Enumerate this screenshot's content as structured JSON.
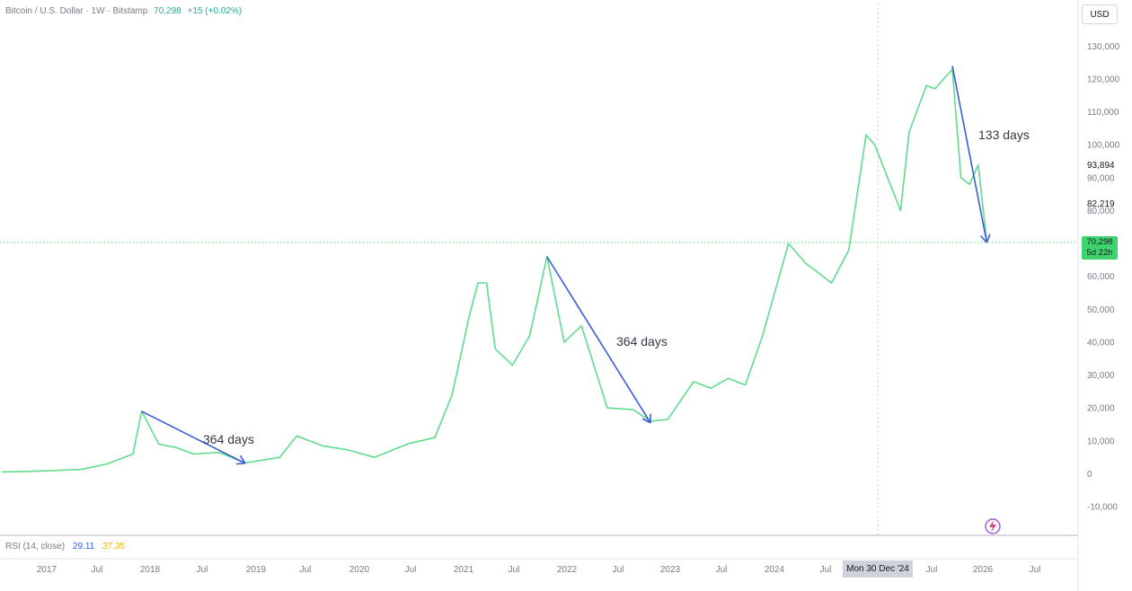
{
  "header": {
    "symbol": "Bitcoin / U.S. Dollar · 1W · Bitstamp",
    "last_value": "70,298",
    "change": "+15 (+0.02%)"
  },
  "currency_button": "USD",
  "rsi_panel": {
    "label": "RSI (14, close)",
    "value_rsi": "29.11",
    "value_ma": "37.35"
  },
  "price_axis": {
    "labels": [
      "130,000",
      "120,000",
      "110,000",
      "100,000",
      "90,000",
      "80,000",
      "60,000",
      "50,000",
      "40,000",
      "30,000",
      "20,000",
      "10,000",
      "0",
      "-10,000"
    ],
    "marker_high": "93,894",
    "marker_low": "82,219",
    "last_price": "70,298",
    "countdown": "5d 22h"
  },
  "time_axis": {
    "labels": [
      "2017",
      "Jul",
      "2018",
      "Jul",
      "2019",
      "Jul",
      "2020",
      "Jul",
      "2021",
      "Jul",
      "2022",
      "Jul",
      "2023",
      "Jul",
      "2024",
      "Jul",
      "Jul",
      "2026",
      "Jul"
    ],
    "crosshair_date": "Mon 30 Dec '24"
  },
  "annotations": [
    {
      "text": "364 days"
    },
    {
      "text": "364 days"
    },
    {
      "text": "133 days"
    }
  ],
  "colors": {
    "line": "#5fdc8c",
    "arrow": "#3b5bdb",
    "accent_green": "#22ab94"
  },
  "chart_data": {
    "type": "line",
    "title": "Bitcoin / U.S. Dollar · 1W · Bitstamp",
    "xlabel": "",
    "ylabel": "",
    "ylim": [
      -15000,
      135000
    ],
    "grid": false,
    "x": [
      "2016-09",
      "2017-01",
      "2017-05",
      "2017-08",
      "2017-11",
      "2017-12",
      "2018-02",
      "2018-04",
      "2018-06",
      "2018-09",
      "2018-12",
      "2019-04",
      "2019-06",
      "2019-09",
      "2019-12",
      "2020-03",
      "2020-07",
      "2020-10",
      "2020-12",
      "2021-02",
      "2021-03",
      "2021-04",
      "2021-05",
      "2021-07",
      "2021-09",
      "2021-11",
      "2022-01",
      "2022-03",
      "2022-06",
      "2022-09",
      "2022-11",
      "2023-01",
      "2023-04",
      "2023-06",
      "2023-08",
      "2023-10",
      "2023-12",
      "2024-03",
      "2024-05",
      "2024-08",
      "2024-10",
      "2024-12",
      "2025-01",
      "2025-04",
      "2025-05",
      "2025-07",
      "2025-08",
      "2025-10",
      "2025-11",
      "2025-12",
      "2026-01",
      "2026-02"
    ],
    "series": [
      {
        "values": [
          600,
          900,
          1300,
          3000,
          6000,
          19000,
          9000,
          8000,
          6000,
          6500,
          3300,
          5000,
          11500,
          8500,
          7200,
          5000,
          9200,
          11000,
          24000,
          48000,
          58000,
          58000,
          38000,
          33000,
          42000,
          66000,
          40000,
          45000,
          20000,
          19500,
          16000,
          16500,
          28000,
          26000,
          29000,
          27000,
          42000,
          70000,
          64000,
          58000,
          68000,
          103000,
          100000,
          80000,
          104000,
          118000,
          117000,
          123000,
          90000,
          88000,
          93894,
          70298
        ]
      }
    ],
    "annotations": [
      {
        "text": "364 days",
        "from": [
          "2017-12",
          19000
        ],
        "to": [
          "2018-12",
          3200
        ]
      },
      {
        "text": "364 days",
        "from": [
          "2021-11",
          66000
        ],
        "to": [
          "2022-11",
          15500
        ]
      },
      {
        "text": "133 days",
        "from": [
          "2025-10",
          124000
        ],
        "to": [
          "2026-02",
          70298
        ]
      }
    ]
  }
}
